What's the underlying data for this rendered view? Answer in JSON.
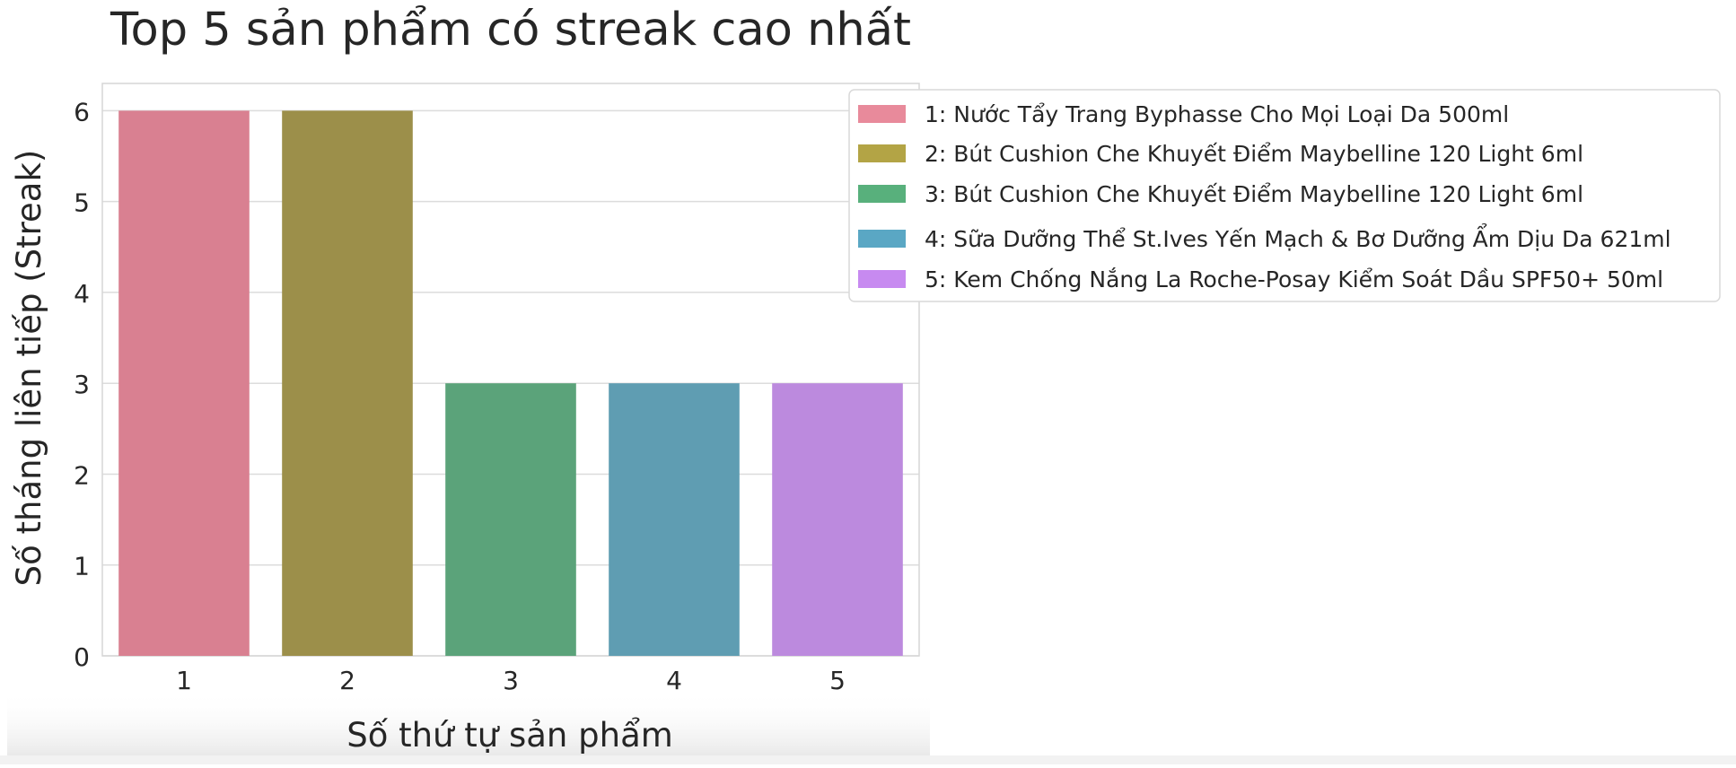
{
  "chart_data": {
    "type": "bar",
    "title": "Top 5 sản phẩm có streak cao nhất",
    "xlabel": "Số thứ tự sản phẩm",
    "ylabel": "Số tháng liên tiếp (Streak)",
    "categories": [
      "1",
      "2",
      "3",
      "4",
      "5"
    ],
    "values": [
      6,
      6,
      3,
      3,
      3
    ],
    "yticks": [
      "0",
      "1",
      "2",
      "3",
      "4",
      "5",
      "6"
    ],
    "ylim": [
      0,
      6.3
    ],
    "grid": true,
    "legend_position": "outside-right",
    "colors": [
      "#d98091",
      "#9c8f4a",
      "#5ba37a",
      "#5f9db2",
      "#bc8ade"
    ],
    "legend_colors": [
      "#e88a9b",
      "#b3a445",
      "#58b07c",
      "#5aa7c4",
      "#c78af0"
    ],
    "legend": [
      "1: Nước Tẩy Trang Byphasse Cho Mọi Loại Da 500ml",
      "2: Bút Cushion Che Khuyết Điểm Maybelline 120 Light 6ml",
      "3: Bút Cushion Che Khuyết Điểm Maybelline 120 Light 6ml",
      "4: Sữa Dưỡng Thể St.Ives Yến Mạch & Bơ Dưỡng Ẩm Dịu Da 621ml",
      "5: Kem Chống Nắng La Roche-Posay Kiểm Soát Dầu SPF50+ 50ml"
    ]
  }
}
